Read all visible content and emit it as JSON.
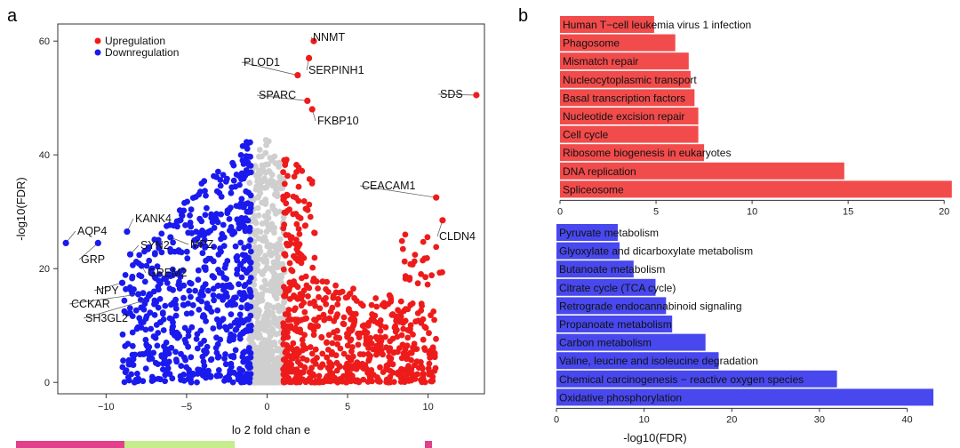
{
  "panel_labels": {
    "a": "a",
    "b": "b"
  },
  "colors": {
    "up": "#ee1b1b",
    "down": "#1a1aee",
    "ns": "#cfcfcf",
    "bar_up": "#f24b4b",
    "bar_down": "#4848ee",
    "strip1": "#e0418a",
    "strip2": "#c6ec8c",
    "strip3": "#e0418a"
  },
  "chart_data": [
    {
      "type": "scatter",
      "title": "",
      "xlabel": "lo  2 fold chan  e",
      "ylabel": "-log10(FDR)",
      "xlim": [
        -13,
        13.5
      ],
      "ylim": [
        -2,
        63
      ],
      "x_ticks": [
        -10,
        -5,
        0,
        5,
        10
      ],
      "x_tick_labels": [
        "−10",
        "−5",
        "0",
        "5",
        "10"
      ],
      "y_ticks": [
        0,
        20,
        40,
        60
      ],
      "y_tick_labels": [
        "0",
        "20",
        "40",
        "60"
      ],
      "legend": {
        "position": "top-left",
        "entries": [
          {
            "label": "Upregulation",
            "color": "#ee1b1b"
          },
          {
            "label": "Downregulation",
            "color": "#1a1aee"
          }
        ]
      },
      "labeled_points": [
        {
          "gene": "NNMT",
          "x": 2.9,
          "y": 60,
          "group": "up"
        },
        {
          "gene": "PLOD1",
          "x": 1.9,
          "y": 54,
          "group": "up"
        },
        {
          "gene": "SERPINH1",
          "x": 2.6,
          "y": 57,
          "group": "up"
        },
        {
          "gene": "SDS",
          "x": 13.0,
          "y": 50.5,
          "group": "up"
        },
        {
          "gene": "SPARC",
          "x": 2.5,
          "y": 49.5,
          "group": "up"
        },
        {
          "gene": "FKBP10",
          "x": 2.8,
          "y": 48,
          "group": "up"
        },
        {
          "gene": "CEACAM1",
          "x": 10.5,
          "y": 32.5,
          "group": "up"
        },
        {
          "gene": "CLDN4",
          "x": 10.9,
          "y": 28.5,
          "group": "up"
        },
        {
          "gene": "AQP4",
          "x": -12.5,
          "y": 24.5,
          "group": "down"
        },
        {
          "gene": "KANK4",
          "x": -8.7,
          "y": 26.5,
          "group": "down"
        },
        {
          "gene": "GRP",
          "x": -10.5,
          "y": 24.5,
          "group": "down"
        },
        {
          "gene": "SYN2",
          "x": -8.5,
          "y": 22.5,
          "group": "down"
        },
        {
          "gene": "MPZ",
          "x": -6.0,
          "y": 25.5,
          "group": "down"
        },
        {
          "gene": "GREM2",
          "x": -7.8,
          "y": 20.5,
          "group": "down"
        },
        {
          "gene": "NPY",
          "x": -9.0,
          "y": 17.5,
          "group": "down"
        },
        {
          "gene": "CCKAR",
          "x": -8.0,
          "y": 15.5,
          "group": "down"
        },
        {
          "gene": "SH3GL2",
          "x": -7.5,
          "y": 14.5,
          "group": "down"
        }
      ],
      "background_points_note": "thousands of unlabeled genes: grey (not significant) near x=0, blue (x < -1) and red (x > 1)"
    },
    {
      "type": "bar",
      "orientation": "horizontal",
      "series_name": "Upregulated pathways",
      "xlabel": "",
      "xlim": [
        0,
        20.5
      ],
      "x_ticks": [
        0,
        5,
        10,
        15,
        20
      ],
      "x_tick_labels": [
        "0",
        "5",
        "10",
        "15",
        "20"
      ],
      "categories": [
        "Human T−cell leukemia virus 1 infection",
        "Phagosome",
        "Mismatch repair",
        "Nucleocytoplasmic transport",
        "Basal transcription factors",
        "Nucleotide excision repair",
        "Cell cycle",
        "Ribosome biogenesis in eukaryotes",
        "DNA replication",
        "Spliceosome"
      ],
      "values": [
        4.9,
        6.0,
        6.7,
        6.8,
        7.0,
        7.2,
        7.2,
        7.5,
        14.8,
        20.4
      ]
    },
    {
      "type": "bar",
      "orientation": "horizontal",
      "series_name": "Downregulated pathways",
      "xlabel": "-log10(FDR)",
      "xlim": [
        0,
        44
      ],
      "x_ticks": [
        0,
        10,
        20,
        30,
        40
      ],
      "x_tick_labels": [
        "0",
        "10",
        "20",
        "30",
        "40"
      ],
      "categories": [
        "Pyruvate metabolism",
        "Glyoxylate and dicarboxylate metabolism",
        "Butanoate metabolism",
        "Citrate cycle (TCA cycle)",
        "Retrograde endocannabinoid signaling",
        "Propanoate metabolism",
        "Carbon metabolism",
        "Valine, leucine and isoleucine degradation",
        "Chemical carcinogenesis − reactive oxygen species",
        "Oxidative phosphorylation"
      ],
      "values": [
        7.0,
        7.2,
        8.8,
        11.3,
        12.5,
        13.2,
        17.0,
        18.5,
        32.0,
        43.0
      ]
    }
  ]
}
